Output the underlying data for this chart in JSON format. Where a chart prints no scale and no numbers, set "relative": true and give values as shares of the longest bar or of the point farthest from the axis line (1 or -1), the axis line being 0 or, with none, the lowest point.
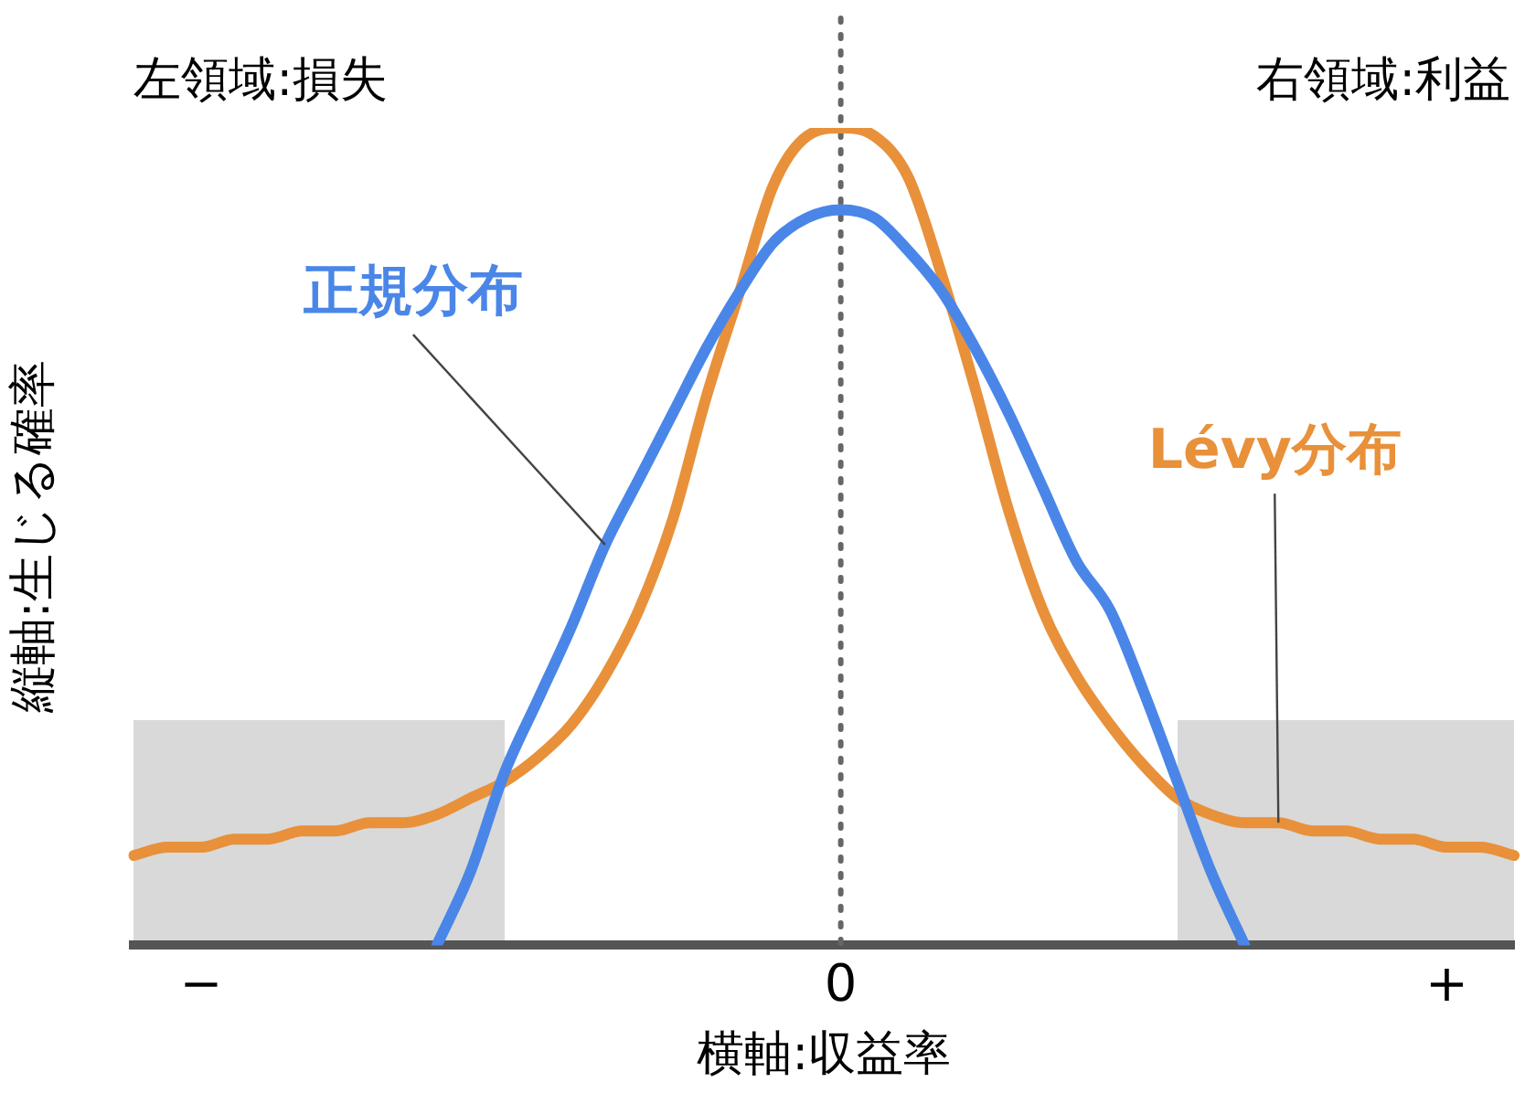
{
  "chart_data": {
    "type": "line",
    "relative": true,
    "xlabel": "横軸:収益率",
    "ylabel": "縦軸:生じる確率",
    "annotations": [
      "左領域:損失",
      "右領域:利益"
    ],
    "categories": [
      null,
      null,
      "−",
      null,
      null,
      null,
      null,
      null,
      null,
      null,
      null,
      null,
      null,
      null,
      null,
      null,
      null,
      null,
      null,
      null,
      null,
      "0",
      null,
      null,
      null,
      null,
      null,
      null,
      null,
      null,
      null,
      null,
      null,
      null,
      null,
      null,
      null,
      null,
      null,
      "+",
      null,
      null
    ],
    "ref_lines": [
      {
        "axis": "x",
        "value": "0",
        "color": "#666666",
        "line_style": "dotted"
      }
    ],
    "legend": false,
    "grid": false,
    "marker": "none",
    "line_style": "solid",
    "series": [
      {
        "name": "正規分布",
        "color": "#4a86e8",
        "values": [
          null,
          null,
          null,
          null,
          null,
          null,
          null,
          null,
          null,
          0,
          0.09,
          0.21,
          0.3,
          0.39,
          0.49,
          0.57,
          0.65,
          0.73,
          0.8,
          0.86,
          0.89,
          0.9,
          0.89,
          0.85,
          0.8,
          0.73,
          0.65,
          0.56,
          0.47,
          0.41,
          0.31,
          0.2,
          0.09,
          0,
          null,
          null,
          null,
          null,
          null,
          null,
          null,
          null
        ]
      },
      {
        "name": "Lévy分布",
        "color": "#e8913a",
        "values": [
          0.11,
          0.12,
          0.12,
          0.13,
          0.13,
          0.14,
          0.14,
          0.15,
          0.15,
          0.16,
          0.18,
          0.2,
          0.23,
          0.27,
          0.33,
          0.41,
          0.52,
          0.67,
          0.8,
          0.93,
          0.99,
          1,
          0.99,
          0.94,
          0.82,
          0.68,
          0.53,
          0.41,
          0.33,
          0.27,
          0.22,
          0.18,
          0.16,
          0.15,
          0.15,
          0.14,
          0.14,
          0.13,
          0.13,
          0.12,
          0.12,
          0.11
        ]
      }
    ]
  }
}
